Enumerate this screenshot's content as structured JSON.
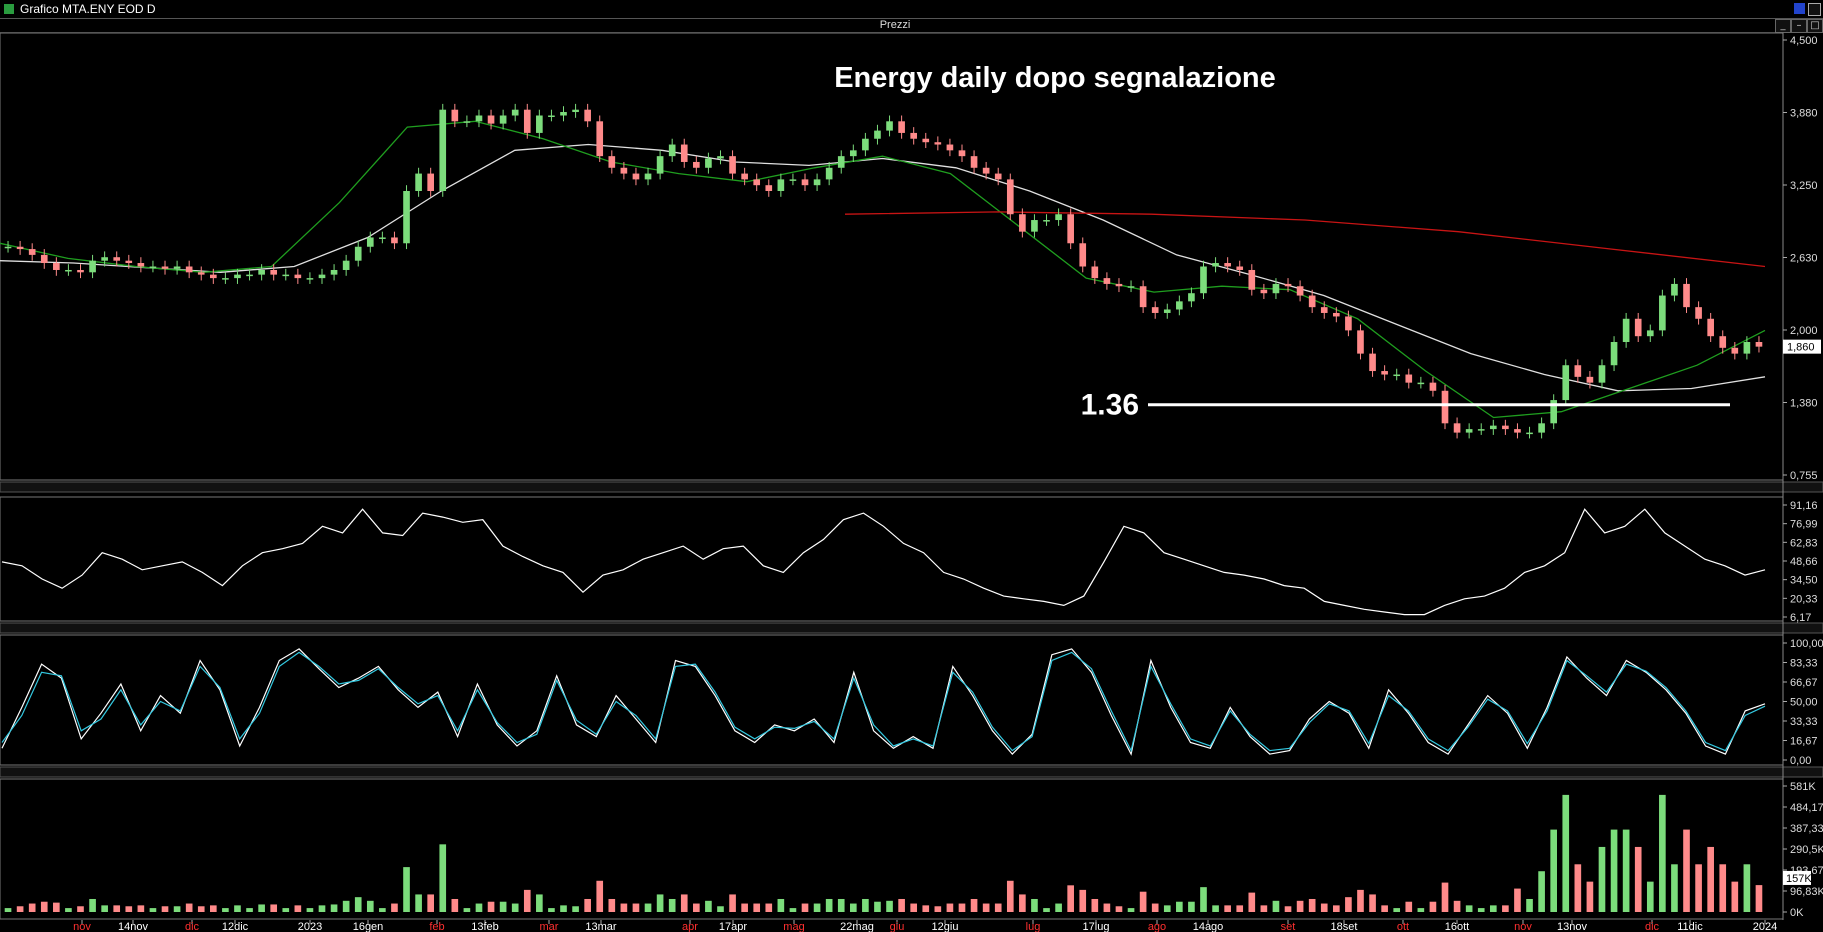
{
  "window": {
    "title": "Grafico MTA.ENY EOD D",
    "panel_title": "Prezzi",
    "panel_buttons": [
      "_",
      "–",
      "□",
      "×"
    ]
  },
  "colors": {
    "up_candle": "#7cdc7c",
    "down_candle": "#ff8a8a",
    "ma_fast": "#1f9e1f",
    "ma_mid": "#e0e0e0",
    "ma_long": "#c81414",
    "rsi": "#ffffff",
    "stoch_k": "#ffffff",
    "stoch_d": "#33c8e0",
    "price_tag": "#ffffff",
    "annotation": "#ffffff",
    "month_label": "#ff3030",
    "date_label": "#ffffff"
  },
  "chart_data": [
    {
      "type": "candlestick",
      "panel": "price",
      "title": "Energy daily dopo segnalazione",
      "y_ticks": [
        "4,500",
        "3,880",
        "3,250",
        "2,630",
        "2,000",
        "1,380",
        "0,755"
      ],
      "ylim": [
        0.755,
        4.5
      ],
      "last_price_label": "1,860",
      "last_price": 1.86,
      "annotation": {
        "label": "1.36",
        "value": 1.36,
        "type": "horizontal-line"
      },
      "x_labels": [
        {
          "text": "nov",
          "month": true
        },
        {
          "text": "14nov",
          "month": false
        },
        {
          "text": "dic",
          "month": true
        },
        {
          "text": "12dic",
          "month": false
        },
        {
          "text": "2023",
          "month": false
        },
        {
          "text": "16gen",
          "month": false
        },
        {
          "text": "feb",
          "month": true
        },
        {
          "text": "13feb",
          "month": false
        },
        {
          "text": "mar",
          "month": true
        },
        {
          "text": "13mar",
          "month": false
        },
        {
          "text": "apr",
          "month": true
        },
        {
          "text": "17apr",
          "month": false
        },
        {
          "text": "mag",
          "month": true
        },
        {
          "text": "22mag",
          "month": false
        },
        {
          "text": "giu",
          "month": true
        },
        {
          "text": "12giu",
          "month": false
        },
        {
          "text": "lug",
          "month": true
        },
        {
          "text": "17lug",
          "month": false
        },
        {
          "text": "ago",
          "month": true
        },
        {
          "text": "14ago",
          "month": false
        },
        {
          "text": "set",
          "month": true
        },
        {
          "text": "18set",
          "month": false
        },
        {
          "text": "ott",
          "month": true
        },
        {
          "text": "16ott",
          "month": false
        },
        {
          "text": "nov",
          "month": true
        },
        {
          "text": "13nov",
          "month": false
        },
        {
          "text": "dic",
          "month": true
        },
        {
          "text": "11dic",
          "month": false
        },
        {
          "text": "2024",
          "month": false
        }
      ],
      "close_series": [
        2.72,
        2.7,
        2.65,
        2.58,
        2.52,
        2.52,
        2.5,
        2.6,
        2.63,
        2.6,
        2.58,
        2.55,
        2.55,
        2.53,
        2.55,
        2.5,
        2.48,
        2.45,
        2.45,
        2.48,
        2.48,
        2.52,
        2.48,
        2.48,
        2.45,
        2.45,
        2.48,
        2.52,
        2.6,
        2.72,
        2.8,
        2.8,
        2.75,
        3.2,
        3.35,
        3.2,
        3.9,
        3.8,
        3.8,
        3.85,
        3.78,
        3.85,
        3.9,
        3.7,
        3.85,
        3.85,
        3.88,
        3.9,
        3.8,
        3.5,
        3.4,
        3.35,
        3.3,
        3.35,
        3.5,
        3.6,
        3.45,
        3.4,
        3.48,
        3.5,
        3.35,
        3.3,
        3.25,
        3.2,
        3.3,
        3.3,
        3.25,
        3.3,
        3.4,
        3.5,
        3.55,
        3.65,
        3.72,
        3.8,
        3.7,
        3.65,
        3.62,
        3.6,
        3.55,
        3.5,
        3.4,
        3.35,
        3.3,
        3.0,
        2.85,
        2.95,
        2.95,
        3.0,
        2.75,
        2.55,
        2.45,
        2.4,
        2.38,
        2.38,
        2.2,
        2.15,
        2.18,
        2.25,
        2.32,
        2.55,
        2.58,
        2.55,
        2.52,
        2.35,
        2.32,
        2.4,
        2.38,
        2.3,
        2.2,
        2.15,
        2.12,
        2.0,
        1.8,
        1.65,
        1.62,
        1.62,
        1.55,
        1.55,
        1.48,
        1.2,
        1.12,
        1.15,
        1.15,
        1.18,
        1.15,
        1.12,
        1.12,
        1.2,
        1.4,
        1.7,
        1.6,
        1.55,
        1.7,
        1.9,
        2.1,
        1.95,
        2.0,
        2.3,
        2.4,
        2.2,
        2.1,
        1.95,
        1.85,
        1.8,
        1.9,
        1.86
      ],
      "ma_fast": [
        2.75,
        2.62,
        2.55,
        2.5,
        2.55,
        3.1,
        3.75,
        3.8,
        3.65,
        3.45,
        3.35,
        3.28,
        3.4,
        3.5,
        3.35,
        2.9,
        2.45,
        2.33,
        2.38,
        2.35,
        2.1,
        1.65,
        1.25,
        1.3,
        1.5,
        1.7,
        2.0
      ],
      "ma_mid": [
        2.6,
        2.58,
        2.54,
        2.5,
        2.55,
        2.8,
        3.2,
        3.55,
        3.6,
        3.55,
        3.45,
        3.42,
        3.48,
        3.4,
        3.2,
        2.95,
        2.65,
        2.48,
        2.3,
        2.05,
        1.8,
        1.62,
        1.48,
        1.5,
        1.6
      ],
      "ma_long": [
        3.0,
        3.02,
        3.0,
        2.95,
        2.85,
        2.7,
        2.55
      ]
    },
    {
      "type": "line",
      "panel": "oscillator-1",
      "y_ticks": [
        "91,16",
        "76,99",
        "62,83",
        "48,66",
        "34,50",
        "20,33",
        "6,17"
      ],
      "ylim": [
        6.17,
        91.16
      ],
      "values": [
        48,
        45,
        35,
        28,
        38,
        55,
        50,
        42,
        45,
        48,
        40,
        30,
        45,
        55,
        58,
        62,
        75,
        70,
        88,
        70,
        68,
        85,
        82,
        78,
        80,
        60,
        52,
        45,
        40,
        25,
        38,
        42,
        50,
        55,
        60,
        50,
        58,
        60,
        45,
        40,
        55,
        65,
        80,
        85,
        75,
        62,
        55,
        40,
        35,
        28,
        22,
        20,
        18,
        15,
        22,
        48,
        75,
        70,
        55,
        50,
        45,
        40,
        38,
        35,
        30,
        28,
        18,
        15,
        12,
        10,
        8,
        8,
        15,
        20,
        22,
        28,
        40,
        45,
        55,
        88,
        70,
        75,
        88,
        70,
        60,
        50,
        45,
        38,
        42
      ]
    },
    {
      "type": "line",
      "panel": "oscillator-2",
      "y_ticks": [
        "100,00",
        "83,33",
        "66,67",
        "50,00",
        "33,33",
        "16,67",
        "0,00"
      ],
      "ylim": [
        0,
        100
      ],
      "series": [
        {
          "values": [
            10,
            45,
            82,
            70,
            18,
            40,
            65,
            25,
            55,
            40,
            85,
            60,
            12,
            45,
            85,
            95,
            78,
            62,
            70,
            80,
            60,
            45,
            58,
            20,
            65,
            30,
            12,
            25,
            72,
            30,
            20,
            55,
            35,
            15,
            85,
            80,
            55,
            25,
            15,
            30,
            25,
            35,
            15,
            75,
            25,
            10,
            20,
            10,
            80,
            55,
            25,
            5,
            22,
            90,
            95,
            75,
            38,
            5,
            85,
            45,
            15,
            10,
            45,
            20,
            5,
            8,
            35,
            50,
            40,
            10,
            60,
            40,
            15,
            5,
            30,
            55,
            40,
            10,
            45,
            88,
            70,
            55,
            85,
            75,
            60,
            40,
            12,
            5,
            42,
            48
          ]
        },
        {
          "values": [
            15,
            38,
            75,
            72,
            25,
            35,
            60,
            30,
            50,
            42,
            80,
            62,
            18,
            40,
            80,
            92,
            80,
            65,
            68,
            78,
            62,
            48,
            55,
            25,
            60,
            32,
            15,
            22,
            68,
            34,
            22,
            50,
            38,
            18,
            80,
            82,
            58,
            28,
            18,
            28,
            27,
            33,
            18,
            70,
            30,
            12,
            18,
            12,
            75,
            58,
            28,
            8,
            20,
            85,
            92,
            78,
            42,
            8,
            80,
            48,
            18,
            12,
            42,
            22,
            8,
            10,
            32,
            48,
            42,
            14,
            55,
            42,
            18,
            8,
            28,
            52,
            42,
            14,
            42,
            85,
            72,
            58,
            82,
            76,
            62,
            42,
            15,
            8,
            38,
            46
          ]
        }
      ]
    },
    {
      "type": "bar",
      "panel": "volume",
      "y_ticks": [
        "581K",
        "484,17K",
        "387,33K",
        "290,5K",
        "193,67K",
        "96,83K",
        "0K"
      ],
      "ylim": [
        0,
        581000
      ],
      "last_volume_label": "157K",
      "last_volume": 157000
    }
  ]
}
